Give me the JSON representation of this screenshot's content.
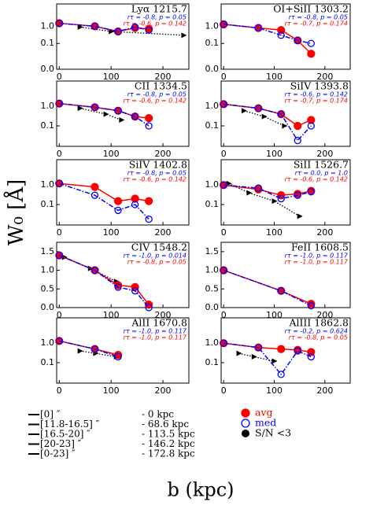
{
  "chart_data": [
    {
      "type": "line",
      "title": "Lyα 1215.7",
      "x": [
        0,
        68.6,
        113.5,
        146.2,
        172.8
      ],
      "xlim": [
        -5,
        250
      ],
      "xticks": [
        0,
        100,
        200
      ],
      "yscale": "symlog",
      "linthresh": 0.1,
      "linscale": 1.5,
      "ylim": [
        0,
        20
      ],
      "yticks": [
        {
          "value": 0,
          "label": "0.0"
        },
        0.1,
        {
          "value": 1,
          "label": "1.0"
        }
      ],
      "series": [
        {
          "name": "avg",
          "color": "#ff0000",
          "linestyle": "solid",
          "values": [
            1.5,
            1.0,
            0.5,
            0.8,
            0.7
          ]
        },
        {
          "name": "med",
          "color": "#0000ff",
          "linestyle": "dashdot",
          "values": [
            1.5,
            1.0,
            0.5,
            0.9,
            0.6
          ]
        }
      ],
      "trend": {
        "color": "#000000",
        "x": [
          40,
          100,
          240
        ],
        "values": [
          0.9,
          0.5,
          0.3
        ]
      },
      "stats": [
        {
          "color": "#0000ff",
          "text": "rτ = -0.8, p = 0.05"
        },
        {
          "color": "#ff0000",
          "text": "rτ = -0.6, p = 0.142"
        }
      ]
    },
    {
      "type": "line",
      "title": "OI+SiII 1303.2",
      "x": [
        0,
        68.6,
        113.5,
        146.2,
        172.8
      ],
      "xlim": [
        -5,
        250
      ],
      "xticks": [
        0,
        100,
        200
      ],
      "yscale": "symlog",
      "linthresh": 0.1,
      "linscale": 1.5,
      "ylim": [
        0,
        20
      ],
      "yticks": [
        {
          "value": 0,
          "label": "0.0"
        },
        0.1,
        {
          "value": 1,
          "label": "1.0"
        }
      ],
      "series": [
        {
          "name": "avg",
          "color": "#ff0000",
          "linestyle": "solid",
          "values": [
            1.3,
            0.8,
            0.6,
            0.15,
            0.06
          ]
        },
        {
          "name": "med",
          "color": "#0000ff",
          "linestyle": "dashdot",
          "values": [
            1.3,
            0.8,
            0.3,
            0.15,
            0.1
          ]
        }
      ],
      "stats": [
        {
          "color": "#0000ff",
          "text": "rτ = -0.8, p = 0.05"
        },
        {
          "color": "#ff0000",
          "text": "rτ = -0.7, p = 0.174"
        }
      ]
    },
    {
      "type": "line",
      "title": "CII 1334.5",
      "x": [
        0,
        68.6,
        113.5,
        146.2,
        172.8
      ],
      "xlim": [
        -5,
        250
      ],
      "xticks": [
        0,
        100,
        200
      ],
      "yscale": "symlog",
      "linthresh": 0.1,
      "linscale": 1.5,
      "ylim": [
        0.03,
        20
      ],
      "yticks": [
        0.1,
        {
          "value": 1,
          "label": "1.0"
        }
      ],
      "series": [
        {
          "name": "avg",
          "color": "#ff0000",
          "linestyle": "solid",
          "values": [
            1.4,
            0.9,
            0.6,
            0.3,
            0.25
          ]
        },
        {
          "name": "med",
          "color": "#0000ff",
          "linestyle": "dashdot",
          "values": [
            1.4,
            0.9,
            0.6,
            0.3,
            0.1
          ]
        }
      ],
      "trend": {
        "color": "#000000",
        "x": [
          40,
          90,
          120
        ],
        "values": [
          0.8,
          0.4,
          0.2
        ]
      },
      "stats": [
        {
          "color": "#0000ff",
          "text": "rτ = -0.8, p = 0.05"
        },
        {
          "color": "#ff0000",
          "text": "rτ = -0.6, p = 0.142"
        }
      ]
    },
    {
      "type": "line",
      "title": "SiIV 1393.8",
      "x": [
        0,
        68.6,
        113.5,
        146.2,
        172.8
      ],
      "xlim": [
        -5,
        250
      ],
      "xticks": [
        0,
        100,
        200
      ],
      "yscale": "symlog",
      "linthresh": 0.1,
      "linscale": 1.5,
      "ylim": [
        0.03,
        20
      ],
      "yticks": [
        0.1,
        {
          "value": 1,
          "label": "1.0"
        }
      ],
      "series": [
        {
          "name": "avg",
          "color": "#ff0000",
          "linestyle": "solid",
          "values": [
            1.3,
            0.8,
            0.4,
            0.1,
            0.2
          ]
        },
        {
          "name": "med",
          "color": "#0000ff",
          "linestyle": "dashdot",
          "values": [
            1.3,
            0.8,
            0.4,
            0.05,
            0.1
          ]
        }
      ],
      "trend": {
        "color": "#000000",
        "x": [
          40,
          80,
          120
        ],
        "values": [
          0.6,
          0.3,
          0.1
        ]
      },
      "stats": [
        {
          "color": "#0000ff",
          "text": "rτ = -0.6, p = 0.142"
        },
        {
          "color": "#ff0000",
          "text": "rτ = -0.7, p = 0.174"
        }
      ]
    },
    {
      "type": "line",
      "title": "SiIV 1402.8",
      "x": [
        0,
        68.6,
        113.5,
        146.2,
        172.8
      ],
      "xlim": [
        -5,
        250
      ],
      "xticks": [
        0,
        100,
        200
      ],
      "yscale": "symlog",
      "linthresh": 0.1,
      "linscale": 1.5,
      "ylim": [
        0.03,
        20
      ],
      "yticks": [
        0.1,
        {
          "value": 1,
          "label": "1.0"
        }
      ],
      "series": [
        {
          "name": "avg",
          "color": "#ff0000",
          "linestyle": "solid",
          "values": [
            1.2,
            0.8,
            0.15,
            0.2,
            0.15
          ]
        },
        {
          "name": "med",
          "color": "#0000ff",
          "linestyle": "dashdot",
          "values": [
            1.2,
            0.3,
            0.08,
            0.1,
            0.05
          ]
        }
      ],
      "stats": [
        {
          "color": "#0000ff",
          "text": "rτ = -0.8, p = 0.05"
        },
        {
          "color": "#ff0000",
          "text": "rτ = -0.6, p = 0.142"
        }
      ]
    },
    {
      "type": "line",
      "title": "SiII 1526.7",
      "x": [
        0,
        68.6,
        113.5,
        146.2,
        172.8
      ],
      "xlim": [
        -5,
        250
      ],
      "xticks": [
        0,
        100,
        200
      ],
      "yscale": "symlog",
      "linthresh": 0.1,
      "linscale": 1.5,
      "ylim": [
        0.03,
        20
      ],
      "yticks": [
        0.1,
        {
          "value": 1,
          "label": "1.0"
        }
      ],
      "series": [
        {
          "name": "avg",
          "color": "#ff0000",
          "linestyle": "solid",
          "values": [
            1.0,
            0.6,
            0.3,
            0.35,
            0.5
          ]
        },
        {
          "name": "med",
          "color": "#0000ff",
          "linestyle": "dashdot",
          "values": [
            1.0,
            0.7,
            0.2,
            0.3,
            0.45
          ]
        }
      ],
      "trend": {
        "color": "#000000",
        "x": [
          10,
          50,
          100,
          150
        ],
        "values": [
          1.2,
          0.4,
          0.15,
          0.06
        ]
      },
      "stats": [
        {
          "color": "#0000ff",
          "text": "rτ = 0.0, p = 1.0"
        },
        {
          "color": "#ff0000",
          "text": "rτ = -0.6, p = 0.142"
        }
      ]
    },
    {
      "type": "line",
      "title": "CIV 1548.2",
      "x": [
        0,
        68.6,
        113.5,
        146.2,
        172.8
      ],
      "xlim": [
        -5,
        250
      ],
      "xticks": [
        0,
        100,
        200
      ],
      "yscale": "linear",
      "ylim": [
        0,
        1.75
      ],
      "yticks": [
        {
          "value": 0,
          "label": "0.0"
        },
        0.5,
        {
          "value": 1,
          "label": "1.0"
        },
        1.5
      ],
      "series": [
        {
          "name": "avg",
          "color": "#ff0000",
          "linestyle": "solid",
          "values": [
            1.4,
            1.0,
            0.6,
            0.55,
            0.08
          ]
        },
        {
          "name": "med",
          "color": "#0000ff",
          "linestyle": "dashdot",
          "values": [
            1.4,
            1.0,
            0.55,
            0.45,
            0.0
          ]
        }
      ],
      "trend": {
        "color": "#000000",
        "x": [
          10,
          60,
          110
        ],
        "values": [
          1.35,
          1.05,
          0.7
        ]
      },
      "stats": [
        {
          "color": "#0000ff",
          "text": "rτ = -1.0, p = 0.014"
        },
        {
          "color": "#ff0000",
          "text": "rτ = -0.8, p = 0.05"
        }
      ]
    },
    {
      "type": "line",
      "title": "FeII 1608.5",
      "x": [
        0,
        113.5,
        172.8
      ],
      "xlim": [
        -5,
        250
      ],
      "xticks": [
        0,
        100,
        200
      ],
      "yscale": "linear",
      "ylim": [
        0,
        1.75
      ],
      "yticks": [
        {
          "value": 0,
          "label": "0.0"
        },
        0.5,
        {
          "value": 1,
          "label": "1.0"
        },
        1.5
      ],
      "series": [
        {
          "name": "avg",
          "color": "#ff0000",
          "linestyle": "solid",
          "values": [
            1.0,
            0.45,
            0.1
          ]
        },
        {
          "name": "med",
          "color": "#0000ff",
          "linestyle": "dashdot",
          "values": [
            1.0,
            0.45,
            0.05
          ]
        }
      ],
      "stats": [
        {
          "color": "#0000ff",
          "text": "rτ = -1.0, p = 0.117"
        },
        {
          "color": "#ff0000",
          "text": "rτ = -1.0, p = 0.117"
        }
      ]
    },
    {
      "type": "line",
      "title": "AlII 1670.8",
      "x": [
        0,
        68.6,
        113.5
      ],
      "xlim": [
        -5,
        250
      ],
      "xticks": [
        0,
        100,
        200
      ],
      "yscale": "symlog",
      "linthresh": 0.1,
      "linscale": 1.5,
      "ylim": [
        0.03,
        20
      ],
      "yticks": [
        0.1,
        {
          "value": 1,
          "label": "1.0"
        }
      ],
      "series": [
        {
          "name": "avg",
          "color": "#ff0000",
          "linestyle": "solid",
          "values": [
            1.3,
            0.5,
            0.25
          ]
        },
        {
          "name": "med",
          "color": "#0000ff",
          "linestyle": "dashdot",
          "values": [
            1.3,
            0.5,
            0.2
          ]
        }
      ],
      "trend": {
        "color": "#000000",
        "x": [
          40,
          70,
          110
        ],
        "values": [
          0.4,
          0.3,
          0.2
        ]
      },
      "stats": [
        {
          "color": "#0000ff",
          "text": "rτ = -1.0, p = 0.117"
        },
        {
          "color": "#ff0000",
          "text": "rτ = -1.0, p = 0.117"
        }
      ]
    },
    {
      "type": "line",
      "title": "AlIII 1862.8",
      "x": [
        0,
        68.6,
        113.5,
        146.2,
        172.8
      ],
      "xlim": [
        -5,
        250
      ],
      "xticks": [
        0,
        100,
        200
      ],
      "yscale": "symlog",
      "linthresh": 0.1,
      "linscale": 1.5,
      "ylim": [
        0.03,
        20
      ],
      "yticks": [
        0.1,
        {
          "value": 1,
          "label": "1.0"
        }
      ],
      "series": [
        {
          "name": "avg",
          "color": "#ff0000",
          "linestyle": "solid",
          "values": [
            1.0,
            0.6,
            0.5,
            0.45,
            0.35
          ]
        },
        {
          "name": "med",
          "color": "#0000ff",
          "linestyle": "dashdot",
          "values": [
            1.0,
            0.6,
            0.06,
            0.4,
            0.2
          ]
        }
      ],
      "trend": {
        "color": "#000000",
        "x": [
          30,
          60,
          100
        ],
        "values": [
          0.3,
          0.2,
          0.12
        ]
      },
      "stats": [
        {
          "color": "#0000ff",
          "text": "rτ = -0.2, p = 0.624"
        },
        {
          "color": "#ff0000",
          "text": "rτ = -0.8, p = 0.05"
        }
      ]
    }
  ],
  "ylabel": "W₀ [Å]",
  "xlabel": "b (kpc)",
  "bins": [
    "[0] ″",
    "[11.8-16.5] ″",
    "[16.5-20] ″",
    "[20-23] ″",
    "[0-23] ″"
  ],
  "bin_kpc": [
    "- 0 kpc",
    "- 68.6 kpc",
    "- 113.5 kpc",
    "- 146.2 kpc",
    "- 172.8 kpc"
  ],
  "sn_label": "S/N <3"
}
